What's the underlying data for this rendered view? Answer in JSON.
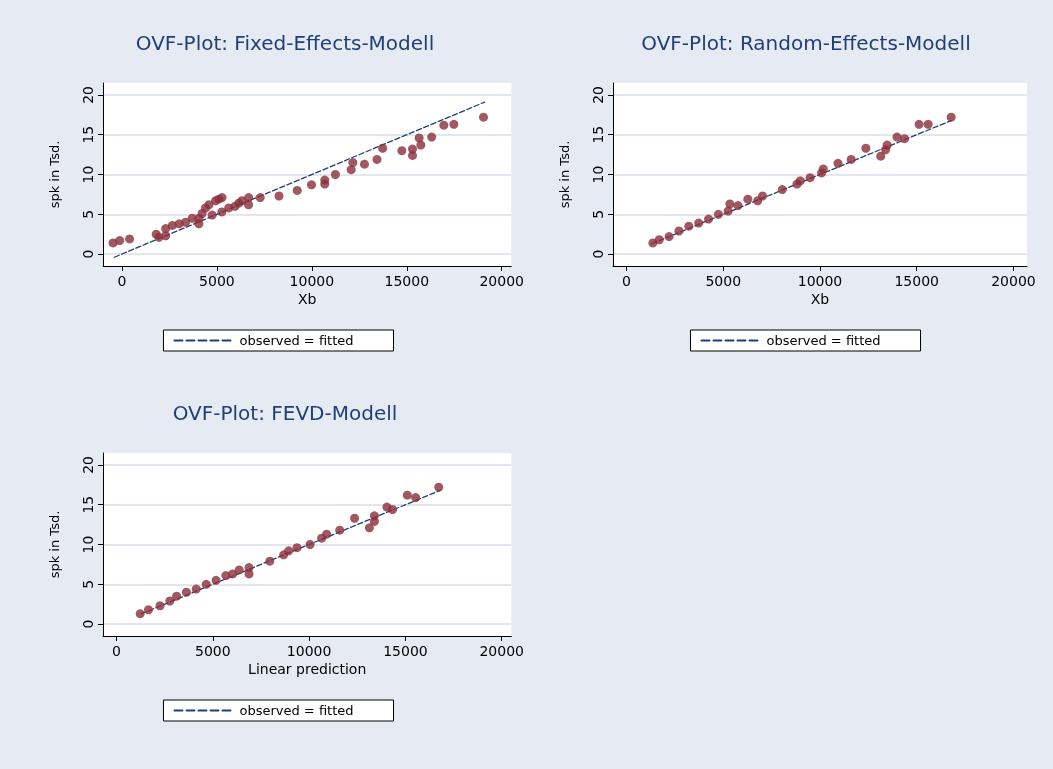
{
  "chart_data": [
    {
      "type": "scatter",
      "title": "OVF-Plot: Fixed-Effects-Modell",
      "xlabel": "Xb",
      "ylabel": "spk in Tsd.",
      "xlim": [
        -1000,
        20500
      ],
      "xticks": [
        0,
        5000,
        10000,
        15000,
        20000
      ],
      "ylim": [
        -1.5,
        21.5
      ],
      "yticks": [
        0,
        5,
        10,
        15,
        20
      ],
      "grid": "y",
      "legend": "bottom",
      "series": [
        {
          "type": "scatter",
          "color": "#8b2e3a",
          "marker": "circle",
          "x": [
            -470,
            -120,
            400,
            1800,
            1950,
            2300,
            2300,
            2650,
            3010,
            3350,
            3700,
            4050,
            4050,
            4220,
            4400,
            4580,
            4750,
            4930,
            5100,
            5260,
            5270,
            5620,
            5950,
            6150,
            6320,
            6670,
            6670,
            7280,
            8270,
            9230,
            9980,
            10680,
            10680,
            11240,
            12070,
            12160,
            12770,
            13430,
            13730,
            14740,
            15300,
            15300,
            15650,
            15740,
            16310,
            16950,
            17480,
            19040
          ],
          "values": [
            1.4,
            1.7,
            1.9,
            2.5,
            2.1,
            2.3,
            3.2,
            3.6,
            3.8,
            4.0,
            4.5,
            4.5,
            3.8,
            5.1,
            5.8,
            6.2,
            4.9,
            6.7,
            6.9,
            5.3,
            7.1,
            5.8,
            6.0,
            6.4,
            6.7,
            7.1,
            6.2,
            7.1,
            7.3,
            8.0,
            8.7,
            9.3,
            8.8,
            10.0,
            10.6,
            11.5,
            11.3,
            11.9,
            13.3,
            13.0,
            12.4,
            13.2,
            14.6,
            13.7,
            14.7,
            16.2,
            16.3,
            17.2
          ]
        },
        {
          "type": "line",
          "name": "observed = fitted",
          "color": "#1f3f77",
          "line_style": "dashed",
          "marker": "none",
          "x": [
            -400,
            19100
          ],
          "values": [
            -0.4,
            19.1
          ]
        }
      ]
    },
    {
      "type": "scatter",
      "title": "OVF-Plot: Random-Effects-Modell",
      "xlabel": "Xb",
      "ylabel": "spk in Tsd.",
      "xlim": [
        -700,
        20700
      ],
      "xticks": [
        0,
        5000,
        10000,
        15000,
        20000
      ],
      "ylim": [
        -1.5,
        21.5
      ],
      "yticks": [
        0,
        5,
        10,
        15,
        20
      ],
      "grid": "y",
      "legend": "bottom",
      "series": [
        {
          "type": "scatter",
          "color": "#8b2e3a",
          "marker": "circle",
          "x": [
            1360,
            1690,
            2200,
            2710,
            3220,
            3730,
            4240,
            4750,
            5250,
            5340,
            5760,
            6270,
            6780,
            7030,
            8050,
            8810,
            8980,
            9490,
            10080,
            10170,
            10930,
            11610,
            12370,
            13140,
            13390,
            13470,
            13980,
            14370,
            15120,
            15590,
            16780
          ],
          "values": [
            1.4,
            1.8,
            2.2,
            2.9,
            3.5,
            3.9,
            4.4,
            5.0,
            5.4,
            6.3,
            6.1,
            6.9,
            6.7,
            7.3,
            8.1,
            8.8,
            9.2,
            9.6,
            10.2,
            10.7,
            11.4,
            11.9,
            13.3,
            12.3,
            13.1,
            13.7,
            14.7,
            14.5,
            16.3,
            16.3,
            17.2
          ]
        },
        {
          "type": "line",
          "name": "observed = fitted",
          "color": "#1f3f77",
          "line_style": "dashed",
          "marker": "none",
          "x": [
            1300,
            16800
          ],
          "values": [
            1.3,
            16.8
          ]
        }
      ]
    },
    {
      "type": "scatter",
      "title": "OVF-Plot: FEVD-Modell",
      "xlabel": "Linear prediction",
      "ylabel": "spk in Tsd.",
      "xlim": [
        -700,
        20500
      ],
      "xticks": [
        0,
        5000,
        10000,
        15000,
        20000
      ],
      "ylim": [
        -1.5,
        21.5
      ],
      "yticks": [
        0,
        5,
        10,
        15,
        20
      ],
      "grid": "y",
      "legend": "bottom",
      "series": [
        {
          "type": "scatter",
          "color": "#8b2e3a",
          "marker": "circle",
          "x": [
            1230,
            1660,
            2260,
            2770,
            3120,
            3630,
            4140,
            4660,
            5170,
            5680,
            6030,
            6370,
            6880,
            6880,
            7960,
            8680,
            8940,
            9370,
            10050,
            10650,
            10910,
            11590,
            12360,
            13130,
            13390,
            13390,
            14040,
            14330,
            15100,
            15530,
            16730
          ],
          "values": [
            1.3,
            1.8,
            2.3,
            2.9,
            3.5,
            4.0,
            4.4,
            5.0,
            5.5,
            6.1,
            6.3,
            6.8,
            7.1,
            6.3,
            7.9,
            8.7,
            9.2,
            9.6,
            10.0,
            10.8,
            11.3,
            11.8,
            13.3,
            12.1,
            12.9,
            13.6,
            14.7,
            14.4,
            16.2,
            15.9,
            17.2
          ]
        },
        {
          "type": "line",
          "name": "observed = fitted",
          "color": "#1f3f77",
          "line_style": "dashed",
          "marker": "none",
          "x": [
            1300,
            16800
          ],
          "values": [
            1.3,
            16.8
          ]
        }
      ]
    }
  ]
}
